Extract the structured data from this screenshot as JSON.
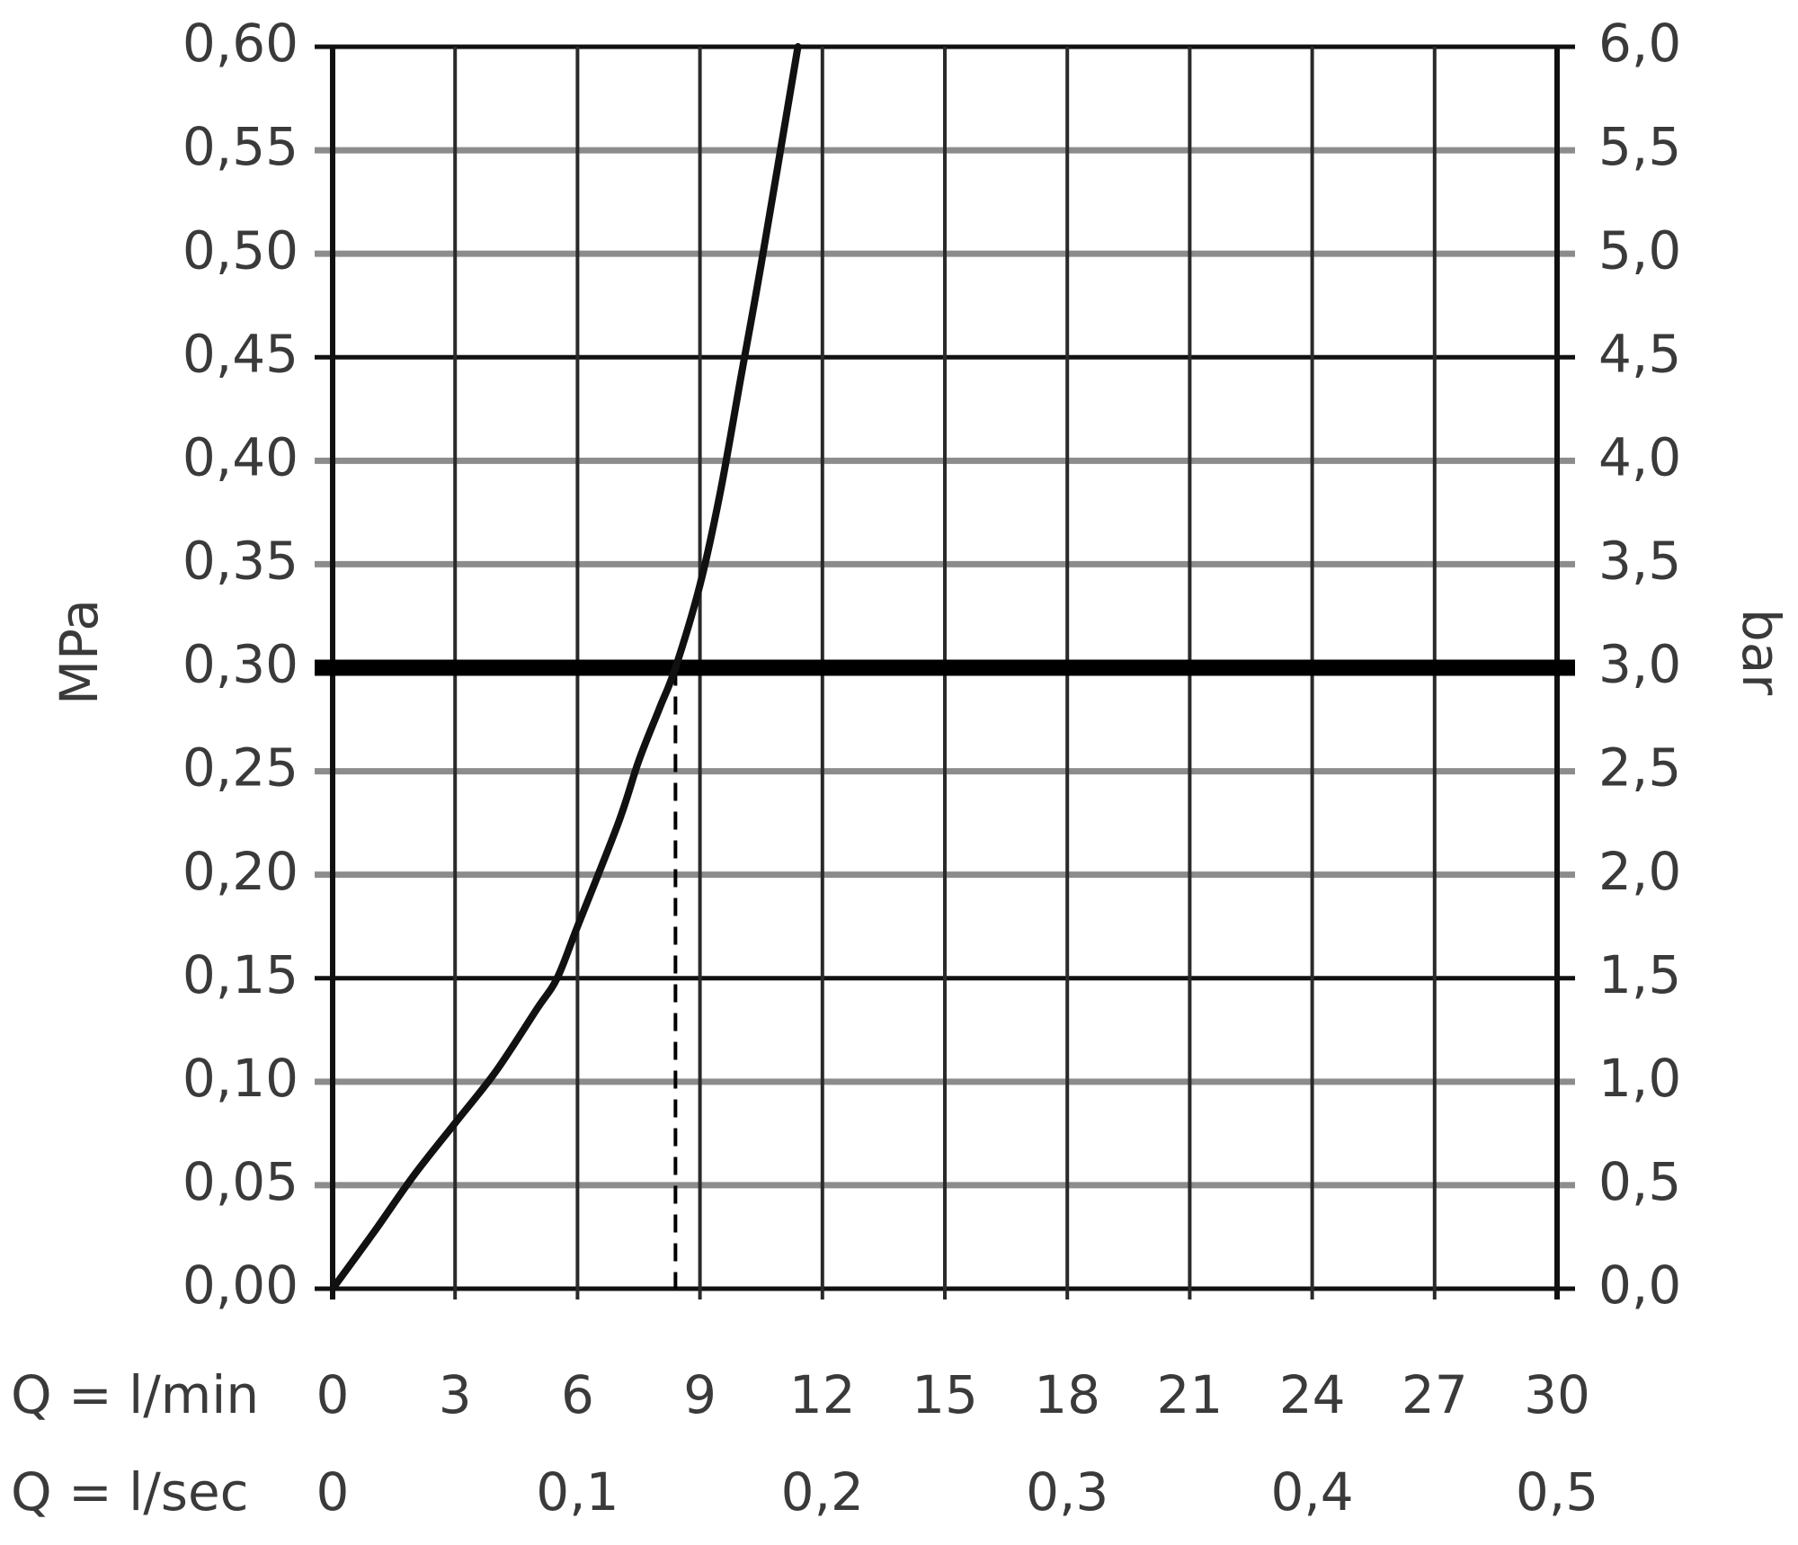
{
  "chart_data": {
    "type": "line",
    "ylabel_left": "MPa",
    "ylabel_right": "bar",
    "xlabel_lpm": "Q = l/min",
    "xlabel_lps": "Q = l/sec",
    "y_ticks_left": [
      "0,00",
      "0,05",
      "0,10",
      "0,15",
      "0,20",
      "0,25",
      "0,30",
      "0,35",
      "0,40",
      "0,45",
      "0,50",
      "0,55",
      "0,60"
    ],
    "y_ticks_right": [
      "0,0",
      "0,5",
      "1,0",
      "1,5",
      "2,0",
      "2,5",
      "3,0",
      "3,5",
      "4,0",
      "4,5",
      "5,0",
      "5,5",
      "6,0"
    ],
    "x_ticks_lpm": [
      "0",
      "3",
      "6",
      "9",
      "12",
      "15",
      "18",
      "21",
      "24",
      "27",
      "30"
    ],
    "x_ticks_lps": [
      "0",
      "0,1",
      "0,2",
      "0,3",
      "0,4",
      "0,5"
    ],
    "ylim": [
      0,
      0.6
    ],
    "xlim": [
      0,
      30
    ],
    "grid": true,
    "reference_line_mpa": 0.3,
    "reference_flow_lpm": 8.4,
    "series": [
      {
        "x": [
          0,
          1,
          2,
          3,
          4,
          5,
          5.5,
          6,
          7,
          7.5,
          8,
          8.4,
          9,
          9.5,
          10,
          10.5,
          11.4
        ],
        "y": [
          0,
          0.027,
          0.055,
          0.08,
          0.105,
          0.135,
          0.15,
          0.175,
          0.225,
          0.255,
          0.28,
          0.3,
          0.34,
          0.385,
          0.44,
          0.495,
          0.6
        ]
      }
    ]
  }
}
